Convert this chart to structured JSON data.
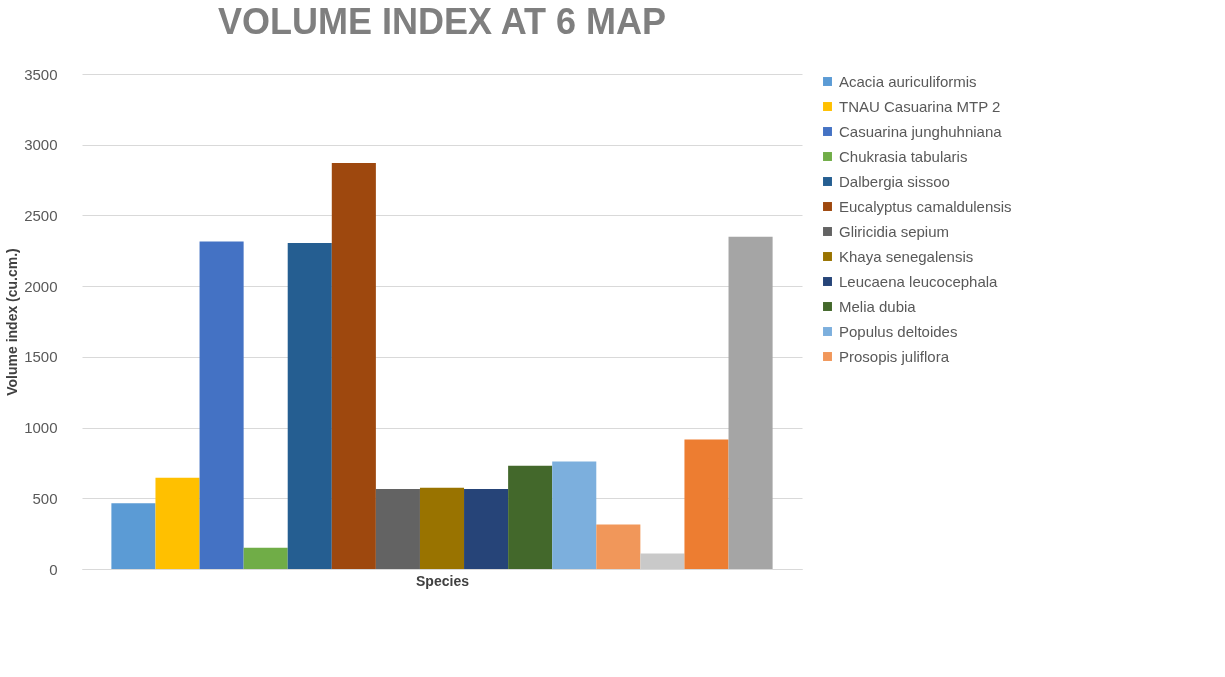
{
  "chart_data": {
    "type": "bar",
    "title": "VOLUME INDEX AT 6 MAP",
    "xlabel": "Species",
    "ylabel": "Volume index (cu.cm.)",
    "categories": [
      null
    ],
    "series": [
      {
        "name": "Acacia auriculiformis",
        "color": "#5b9bd5",
        "values": [
          465
        ]
      },
      {
        "name": "TNAU Casuarina MTP 2",
        "color": "#ffc000",
        "values": [
          645
        ]
      },
      {
        "name": "Casuarina junghuhniana",
        "color": "#4472c4",
        "values": [
          2315
        ]
      },
      {
        "name": "Chukrasia tabularis",
        "color": "#70ad47",
        "values": [
          150
        ]
      },
      {
        "name": "Dalbergia sissoo",
        "color": "#255e91",
        "values": [
          2305
        ]
      },
      {
        "name": "Eucalyptus camaldulensis",
        "color": "#9e480e",
        "values": [
          2870
        ]
      },
      {
        "name": "Gliricidia sepium",
        "color": "#636363",
        "values": [
          565
        ]
      },
      {
        "name": "Khaya senegalensis",
        "color": "#997300",
        "values": [
          575
        ]
      },
      {
        "name": "Leucaena leucocephala",
        "color": "#264478",
        "values": [
          565
        ]
      },
      {
        "name": "Melia dubia",
        "color": "#43682b",
        "values": [
          730
        ]
      },
      {
        "name": "Populus deltoides",
        "color": "#7cafdd",
        "values": [
          760
        ]
      },
      {
        "name": "Prosopis juliflora",
        "color": "#f1975a",
        "values": [
          315
        ]
      },
      {
        "color": "#c9c9c9",
        "values": [
          110
        ]
      },
      {
        "color": "#ed7d31",
        "values": [
          915
        ]
      },
      {
        "color": "#a5a5a5",
        "values": [
          2350
        ]
      }
    ],
    "ylim": [
      0,
      3500
    ],
    "yticks": [
      0,
      500,
      1000,
      1500,
      2000,
      2500,
      3000,
      3500
    ],
    "grid": "y",
    "legend": "right"
  }
}
